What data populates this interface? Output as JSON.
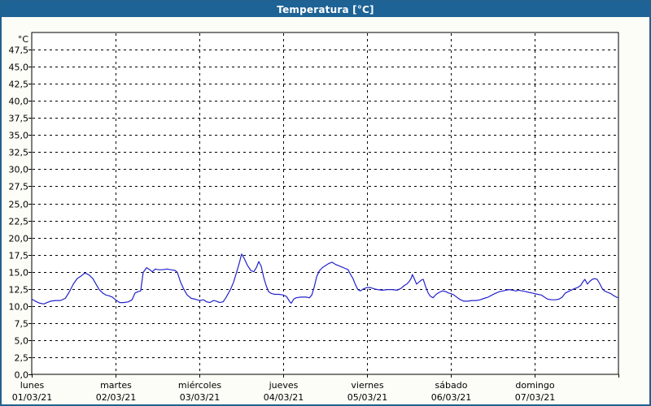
{
  "window": {
    "title": "Temperatura [°C]"
  },
  "colors": {
    "title_bar": "#1d6396",
    "title_text": "#ffffff",
    "window_border": "#21618f",
    "chart_background": "#fdfdf7",
    "plot_background": "#ffffff",
    "grid": "#000000",
    "axis": "#000000",
    "series_line": "#2222cc"
  },
  "chart_data": {
    "type": "line",
    "title": "Temperatura [°C]",
    "ylabel": "°C",
    "ylim": [
      0,
      50
    ],
    "yticks": {
      "min": 0,
      "max": 47.5,
      "step": 2.5,
      "decimal_separator": ",",
      "decimals": 1
    },
    "grid": "dashed",
    "legend_position": "none",
    "x_unit": "hours",
    "xlim": [
      0,
      168
    ],
    "x_tick_interval_hours": 24,
    "x_categories": [
      {
        "label": "lunes",
        "date": "01/03/21"
      },
      {
        "label": "martes",
        "date": "02/03/21"
      },
      {
        "label": "miércoles",
        "date": "03/03/21"
      },
      {
        "label": "jueves",
        "date": "04/03/21"
      },
      {
        "label": "viernes",
        "date": "05/03/21"
      },
      {
        "label": "sábado",
        "date": "06/03/21"
      },
      {
        "label": "domingo",
        "date": "07/03/21"
      }
    ],
    "series": [
      {
        "name": "Temperatura",
        "color": "#2222cc",
        "points": [
          [
            0,
            11.0
          ],
          [
            1.4,
            10.6
          ],
          [
            2.3,
            10.4
          ],
          [
            3.5,
            10.3
          ],
          [
            4.4,
            10.5
          ],
          [
            5.4,
            10.7
          ],
          [
            6.8,
            10.8
          ],
          [
            8.2,
            10.8
          ],
          [
            9.6,
            11.1
          ],
          [
            10.7,
            12.0
          ],
          [
            11.9,
            13.2
          ],
          [
            13,
            14.0
          ],
          [
            14.2,
            14.4
          ],
          [
            15.1,
            14.8
          ],
          [
            15.8,
            14.7
          ],
          [
            16.5,
            14.5
          ],
          [
            17.5,
            14.0
          ],
          [
            18.4,
            13.2
          ],
          [
            19.3,
            12.4
          ],
          [
            20.3,
            11.9
          ],
          [
            21.2,
            11.6
          ],
          [
            22.1,
            11.5
          ],
          [
            23.1,
            11.3
          ],
          [
            24,
            10.9
          ],
          [
            25.2,
            10.5
          ],
          [
            26.3,
            10.5
          ],
          [
            27.7,
            10.6
          ],
          [
            28.7,
            10.9
          ],
          [
            29.6,
            11.9
          ],
          [
            30.5,
            12.1
          ],
          [
            31.2,
            12.2
          ],
          [
            31.9,
            14.9
          ],
          [
            32.9,
            15.6
          ],
          [
            33.8,
            15.3
          ],
          [
            34.5,
            15.0
          ],
          [
            35.4,
            15.4
          ],
          [
            36.3,
            15.3
          ],
          [
            37.5,
            15.3
          ],
          [
            38.7,
            15.4
          ],
          [
            39.8,
            15.3
          ],
          [
            41,
            15.2
          ],
          [
            41.7,
            14.9
          ],
          [
            42.6,
            13.5
          ],
          [
            43.6,
            12.4
          ],
          [
            44.5,
            11.6
          ],
          [
            45.7,
            11.1
          ],
          [
            46.8,
            11.0
          ],
          [
            48,
            10.8
          ],
          [
            49.2,
            10.9
          ],
          [
            50.1,
            10.6
          ],
          [
            51,
            10.5
          ],
          [
            52,
            10.8
          ],
          [
            52.9,
            10.7
          ],
          [
            53.8,
            10.5
          ],
          [
            54.8,
            10.6
          ],
          [
            55.7,
            11.3
          ],
          [
            56.9,
            12.4
          ],
          [
            57.8,
            13.5
          ],
          [
            58.7,
            15.0
          ],
          [
            59.4,
            16.2
          ],
          [
            60.1,
            17.6
          ],
          [
            60.8,
            17.0
          ],
          [
            61.7,
            16.0
          ],
          [
            62.7,
            15.2
          ],
          [
            63.6,
            15.0
          ],
          [
            64.3,
            15.6
          ],
          [
            65,
            16.5
          ],
          [
            65.7,
            15.8
          ],
          [
            66.4,
            14.2
          ],
          [
            67.1,
            13.0
          ],
          [
            67.8,
            12.1
          ],
          [
            68.7,
            11.8
          ],
          [
            69.7,
            11.7
          ],
          [
            70.8,
            11.7
          ],
          [
            72,
            11.6
          ],
          [
            72.9,
            11.4
          ],
          [
            73.9,
            10.6
          ],
          [
            74.3,
            10.4
          ],
          [
            75,
            11.0
          ],
          [
            75.7,
            11.2
          ],
          [
            77.1,
            11.3
          ],
          [
            78.5,
            11.3
          ],
          [
            79.5,
            11.2
          ],
          [
            80.2,
            11.6
          ],
          [
            80.9,
            12.8
          ],
          [
            81.6,
            14.3
          ],
          [
            82.3,
            15.1
          ],
          [
            83.2,
            15.6
          ],
          [
            84.1,
            15.9
          ],
          [
            85,
            16.2
          ],
          [
            86,
            16.4
          ],
          [
            86.9,
            16.1
          ],
          [
            87.8,
            15.9
          ],
          [
            88.8,
            15.7
          ],
          [
            89.7,
            15.5
          ],
          [
            90.6,
            15.3
          ],
          [
            91.3,
            14.6
          ],
          [
            92,
            14.0
          ],
          [
            92.7,
            13.1
          ],
          [
            93.4,
            12.4
          ],
          [
            94.1,
            12.2
          ],
          [
            95,
            12.5
          ],
          [
            96,
            12.7
          ],
          [
            96.9,
            12.7
          ],
          [
            98.1,
            12.5
          ],
          [
            99,
            12.4
          ],
          [
            100.4,
            12.3
          ],
          [
            101.8,
            12.4
          ],
          [
            103.2,
            12.4
          ],
          [
            104.6,
            12.3
          ],
          [
            105.8,
            12.6
          ],
          [
            106.7,
            13.0
          ],
          [
            107.4,
            13.2
          ],
          [
            108.1,
            13.6
          ],
          [
            108.6,
            14.0
          ],
          [
            109,
            14.6
          ],
          [
            109.7,
            13.8
          ],
          [
            110.2,
            13.2
          ],
          [
            110.9,
            13.5
          ],
          [
            111.6,
            13.8
          ],
          [
            112.1,
            13.9
          ],
          [
            112.8,
            12.8
          ],
          [
            113.5,
            11.9
          ],
          [
            114.2,
            11.4
          ],
          [
            114.9,
            11.2
          ],
          [
            115.8,
            11.7
          ],
          [
            116.7,
            12.0
          ],
          [
            117.6,
            12.2
          ],
          [
            118.6,
            12.1
          ],
          [
            119.3,
            11.9
          ],
          [
            120,
            11.8
          ],
          [
            120.9,
            11.6
          ],
          [
            121.9,
            11.2
          ],
          [
            122.8,
            10.9
          ],
          [
            123.7,
            10.7
          ],
          [
            124.9,
            10.7
          ],
          [
            126,
            10.8
          ],
          [
            127.2,
            10.8
          ],
          [
            128.4,
            10.9
          ],
          [
            129.5,
            11.1
          ],
          [
            130.7,
            11.3
          ],
          [
            131.8,
            11.6
          ],
          [
            133,
            11.9
          ],
          [
            134,
            12.1
          ],
          [
            134.9,
            12.2
          ],
          [
            135.8,
            12.3
          ],
          [
            136.7,
            12.4
          ],
          [
            137.7,
            12.3
          ],
          [
            138.6,
            12.2
          ],
          [
            139.5,
            12.3
          ],
          [
            140.5,
            12.2
          ],
          [
            141.4,
            12.1
          ],
          [
            142.3,
            12.0
          ],
          [
            143.2,
            11.9
          ],
          [
            144,
            11.8
          ],
          [
            144.9,
            11.7
          ],
          [
            145.9,
            11.6
          ],
          [
            146.8,
            11.3
          ],
          [
            147.7,
            11.0
          ],
          [
            148.9,
            10.9
          ],
          [
            150,
            10.9
          ],
          [
            151,
            11.0
          ],
          [
            151.9,
            11.3
          ],
          [
            152.8,
            11.9
          ],
          [
            154,
            12.2
          ],
          [
            155.2,
            12.5
          ],
          [
            156.3,
            12.7
          ],
          [
            157.2,
            13.0
          ],
          [
            157.9,
            13.6
          ],
          [
            158.4,
            13.9
          ],
          [
            159.1,
            13.2
          ],
          [
            159.8,
            13.6
          ],
          [
            160.5,
            13.9
          ],
          [
            161.2,
            14.0
          ],
          [
            161.9,
            13.9
          ],
          [
            162.6,
            13.3
          ],
          [
            163.3,
            12.6
          ],
          [
            164,
            12.2
          ],
          [
            164.9,
            12.0
          ],
          [
            165.8,
            11.8
          ],
          [
            166.7,
            11.5
          ],
          [
            167.4,
            11.3
          ],
          [
            168,
            11.2
          ]
        ]
      }
    ]
  }
}
